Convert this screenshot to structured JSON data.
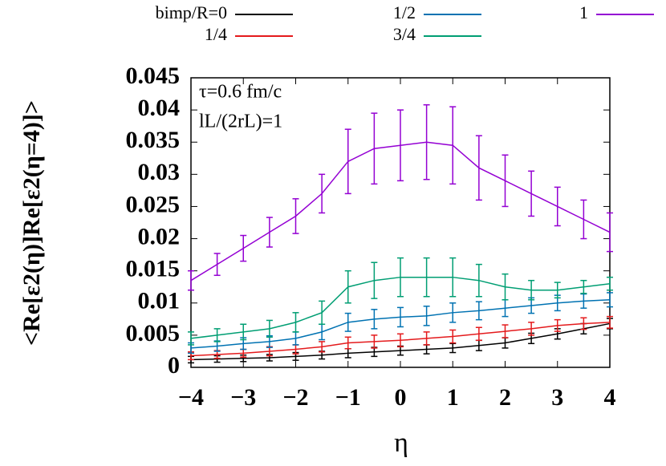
{
  "chart_data": {
    "type": "line",
    "xlabel": "η",
    "ylabel": "<Re[ε2(η)]Re[ε2(η=4)]>",
    "annotations": [
      "τ=0.6 fm/c",
      "lL/(2rL)=1"
    ],
    "x": [
      -4,
      -3.5,
      -3,
      -2.5,
      -2,
      -1.5,
      -1,
      -0.5,
      0,
      0.5,
      1,
      1.5,
      2,
      2.5,
      3,
      3.5,
      4
    ],
    "series": [
      {
        "name": "bimp/R=0",
        "color": "#000000",
        "values": [
          0.0012,
          0.0013,
          0.0014,
          0.0015,
          0.0017,
          0.0019,
          0.0022,
          0.0024,
          0.0026,
          0.0028,
          0.003,
          0.0034,
          0.0038,
          0.0045,
          0.0052,
          0.006,
          0.0068
        ],
        "errors": [
          0.0005,
          0.0005,
          0.0005,
          0.0005,
          0.0006,
          0.0006,
          0.0007,
          0.0007,
          0.0007,
          0.0007,
          0.0007,
          0.0008,
          0.0008,
          0.0008,
          0.0008,
          0.0008,
          0.0008
        ]
      },
      {
        "name": "1/4",
        "color": "#e41a1c",
        "values": [
          0.0018,
          0.002,
          0.0022,
          0.0025,
          0.0028,
          0.0032,
          0.0038,
          0.004,
          0.0042,
          0.0045,
          0.0048,
          0.0052,
          0.0056,
          0.006,
          0.0065,
          0.0068,
          0.007
        ],
        "errors": [
          0.0006,
          0.0006,
          0.0006,
          0.0007,
          0.0007,
          0.0008,
          0.0009,
          0.001,
          0.001,
          0.001,
          0.001,
          0.001,
          0.001,
          0.001,
          0.0009,
          0.0009,
          0.0009
        ]
      },
      {
        "name": "1/2",
        "color": "#0072b2",
        "values": [
          0.003,
          0.0033,
          0.0037,
          0.004,
          0.0045,
          0.0055,
          0.007,
          0.0075,
          0.0078,
          0.008,
          0.0085,
          0.0088,
          0.0092,
          0.0096,
          0.01,
          0.0103,
          0.0105
        ],
        "errors": [
          0.0008,
          0.0008,
          0.0009,
          0.0009,
          0.001,
          0.0012,
          0.0014,
          0.0015,
          0.0015,
          0.0015,
          0.0015,
          0.0014,
          0.0013,
          0.0012,
          0.0012,
          0.0011,
          0.0011
        ]
      },
      {
        "name": "3/4",
        "color": "#009e73",
        "values": [
          0.0045,
          0.005,
          0.0055,
          0.006,
          0.007,
          0.0085,
          0.0125,
          0.0135,
          0.014,
          0.014,
          0.014,
          0.0135,
          0.0125,
          0.012,
          0.012,
          0.0125,
          0.013
        ],
        "errors": [
          0.001,
          0.001,
          0.0012,
          0.0013,
          0.0015,
          0.0018,
          0.0025,
          0.0028,
          0.003,
          0.003,
          0.003,
          0.0025,
          0.002,
          0.0015,
          0.0012,
          0.001,
          0.001
        ]
      },
      {
        "name": "1",
        "color": "#9400d3",
        "values": [
          0.0135,
          0.016,
          0.0185,
          0.021,
          0.0235,
          0.027,
          0.032,
          0.034,
          0.0345,
          0.035,
          0.0345,
          0.031,
          0.029,
          0.027,
          0.025,
          0.023,
          0.021
        ],
        "errors": [
          0.0015,
          0.0017,
          0.002,
          0.0023,
          0.0027,
          0.003,
          0.005,
          0.0055,
          0.0055,
          0.0058,
          0.006,
          0.005,
          0.004,
          0.0035,
          0.003,
          0.003,
          0.003
        ]
      }
    ],
    "xlim": [
      -4,
      4
    ],
    "xticks": [
      {
        "value": -4,
        "label": "−4"
      },
      {
        "value": -3,
        "label": "−3"
      },
      {
        "value": -2,
        "label": "−2"
      },
      {
        "value": -1,
        "label": "−1"
      },
      0,
      1,
      2,
      3,
      4
    ],
    "ylim": [
      0,
      0.045
    ],
    "yticks": [
      0,
      0.005,
      0.01,
      0.015,
      0.02,
      0.025,
      0.03,
      0.035,
      0.04,
      0.045
    ]
  }
}
